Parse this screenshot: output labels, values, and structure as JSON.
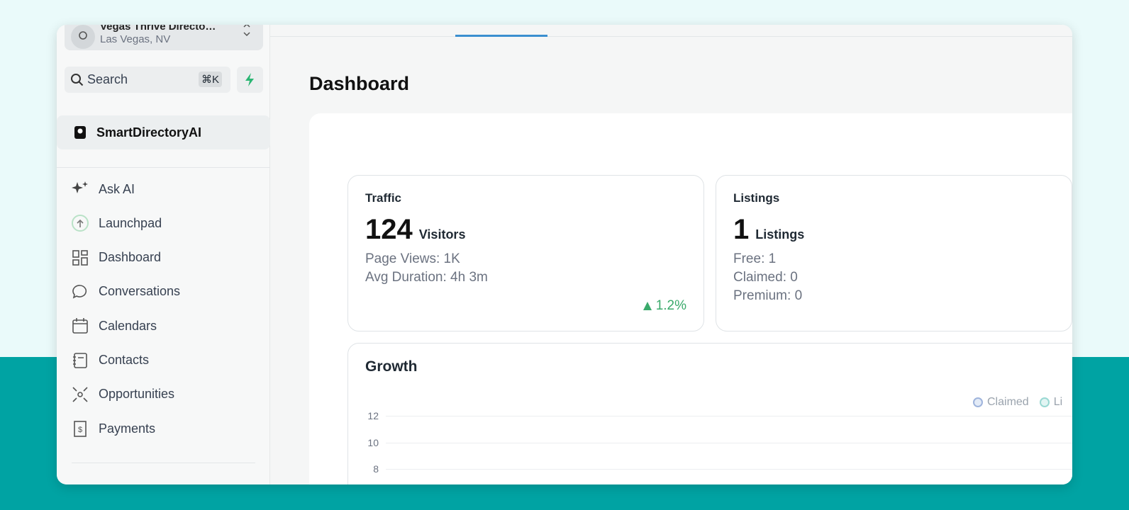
{
  "sidebar": {
    "location": {
      "name": "Vegas Thrive Directo…",
      "city": "Las Vegas, NV"
    },
    "search": {
      "placeholder": "Search",
      "shortcut": "⌘K"
    },
    "workspace": "SmartDirectoryAI",
    "nav": [
      "Ask AI",
      "Launchpad",
      "Dashboard",
      "Conversations",
      "Calendars",
      "Contacts",
      "Opportunities",
      "Payments"
    ]
  },
  "main": {
    "title": "Dashboard",
    "traffic": {
      "title": "Traffic",
      "value": "124",
      "unit": "Visitors",
      "lines": [
        "Page Views: 1K",
        "Avg Duration: 4h 3m"
      ],
      "change": "1.2%"
    },
    "listings": {
      "title": "Listings",
      "value": "1",
      "unit": "Listings",
      "lines": [
        "Free: 1",
        "Claimed: 0",
        "Premium: 0"
      ]
    },
    "growth": {
      "title": "Growth",
      "legend": [
        "Claimed",
        "Li"
      ],
      "yticks": [
        12,
        10,
        8
      ]
    }
  }
}
